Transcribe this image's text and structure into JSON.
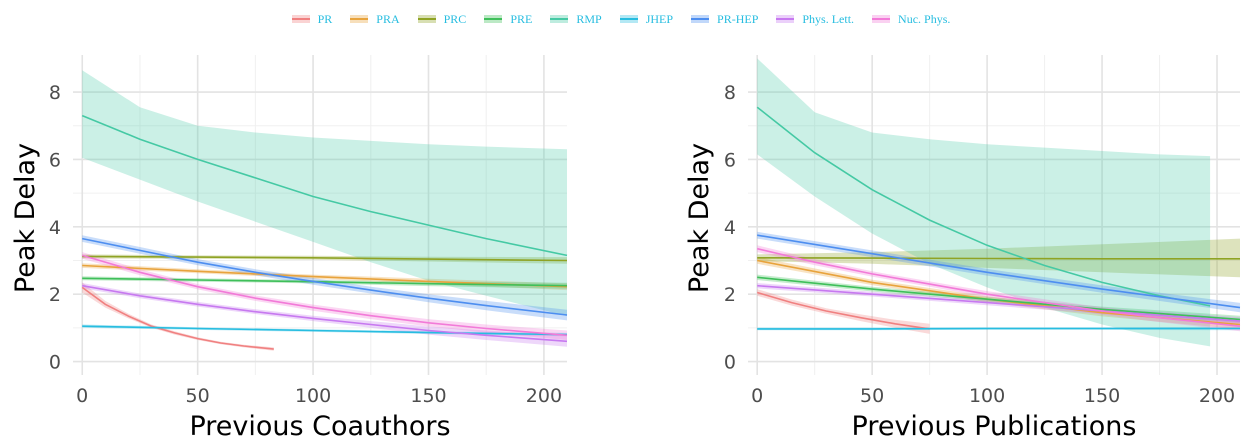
{
  "legend": {
    "items": [
      {
        "name": "PR",
        "color": "#f08080"
      },
      {
        "name": "PRA",
        "color": "#e8a33c"
      },
      {
        "name": "PRC",
        "color": "#8fa324"
      },
      {
        "name": "PRE",
        "color": "#3fbf5a"
      },
      {
        "name": "RMP",
        "color": "#45c9a4"
      },
      {
        "name": "JHEP",
        "color": "#27bde0"
      },
      {
        "name": "PR-HEP",
        "color": "#4d8ef0"
      },
      {
        "name": "Phys. Lett.",
        "color": "#c779f0"
      },
      {
        "name": "Nuc. Phys.",
        "color": "#f27ad8"
      }
    ]
  },
  "chart_data": [
    {
      "type": "line",
      "xlabel": "Previous Coauthors",
      "ylabel": "Peak Delay",
      "xlim": [
        -4,
        210
      ],
      "ylim": [
        -0.4,
        9.1
      ],
      "xticks": [
        0,
        50,
        100,
        150,
        200
      ],
      "yticks": [
        0,
        2,
        4,
        6,
        8
      ],
      "grid": true,
      "series": [
        {
          "name": "PR",
          "color": "#f08080",
          "x": [
            0,
            10,
            20,
            30,
            40,
            50,
            60,
            70,
            83
          ],
          "y": [
            2.2,
            1.7,
            1.35,
            1.05,
            0.85,
            0.68,
            0.55,
            0.46,
            0.37
          ],
          "lower": [
            2.05,
            1.6,
            1.28,
            1.0,
            0.8,
            0.64,
            0.51,
            0.42,
            0.32
          ],
          "upper": [
            2.35,
            1.8,
            1.42,
            1.1,
            0.9,
            0.72,
            0.59,
            0.5,
            0.42
          ]
        },
        {
          "name": "PRA",
          "color": "#e8a33c",
          "x": [
            0,
            50,
            100,
            150,
            210
          ],
          "y": [
            2.85,
            2.68,
            2.52,
            2.38,
            2.22
          ],
          "lower": [
            2.78,
            2.62,
            2.46,
            2.3,
            2.12
          ],
          "upper": [
            2.92,
            2.74,
            2.58,
            2.46,
            2.32
          ]
        },
        {
          "name": "PRC",
          "color": "#8fa324",
          "x": [
            0,
            50,
            100,
            150,
            210
          ],
          "y": [
            3.12,
            3.1,
            3.08,
            3.04,
            3.0
          ],
          "lower": [
            3.06,
            3.05,
            3.02,
            2.97,
            2.9
          ],
          "upper": [
            3.18,
            3.15,
            3.14,
            3.11,
            3.1
          ]
        },
        {
          "name": "PRE",
          "color": "#3fbf5a",
          "x": [
            0,
            50,
            100,
            150,
            210
          ],
          "y": [
            2.47,
            2.42,
            2.37,
            2.31,
            2.25
          ],
          "lower": [
            2.41,
            2.37,
            2.32,
            2.24,
            2.16
          ],
          "upper": [
            2.53,
            2.47,
            2.42,
            2.38,
            2.34
          ]
        },
        {
          "name": "RMP",
          "color": "#45c9a4",
          "x": [
            0,
            25,
            50,
            75,
            100,
            125,
            150,
            175,
            210
          ],
          "y": [
            7.3,
            6.6,
            6.0,
            5.45,
            4.9,
            4.45,
            4.05,
            3.65,
            3.15
          ],
          "lower": [
            6.05,
            5.4,
            4.75,
            4.15,
            3.55,
            2.95,
            2.4,
            1.95,
            1.35
          ],
          "upper": [
            8.65,
            7.55,
            7.0,
            6.8,
            6.65,
            6.55,
            6.45,
            6.38,
            6.3
          ]
        },
        {
          "name": "JHEP",
          "color": "#27bde0",
          "x": [
            0,
            50,
            100,
            150,
            210
          ],
          "y": [
            1.05,
            0.98,
            0.92,
            0.86,
            0.8
          ],
          "lower": [
            1.0,
            0.94,
            0.88,
            0.82,
            0.75
          ],
          "upper": [
            1.1,
            1.02,
            0.96,
            0.9,
            0.85
          ]
        },
        {
          "name": "PR-HEP",
          "color": "#4d8ef0",
          "x": [
            0,
            25,
            50,
            75,
            100,
            125,
            150,
            175,
            210
          ],
          "y": [
            3.65,
            3.3,
            2.95,
            2.65,
            2.38,
            2.12,
            1.88,
            1.66,
            1.38
          ],
          "lower": [
            3.55,
            3.2,
            2.86,
            2.56,
            2.28,
            2.02,
            1.76,
            1.52,
            1.22
          ],
          "upper": [
            3.75,
            3.4,
            3.04,
            2.74,
            2.48,
            2.22,
            2.0,
            1.8,
            1.54
          ]
        },
        {
          "name": "Phys. Lett.",
          "color": "#c779f0",
          "x": [
            0,
            25,
            50,
            75,
            100,
            125,
            150,
            175,
            210
          ],
          "y": [
            2.25,
            1.95,
            1.7,
            1.48,
            1.28,
            1.1,
            0.92,
            0.78,
            0.6
          ],
          "lower": [
            2.17,
            1.88,
            1.63,
            1.41,
            1.2,
            1.0,
            0.8,
            0.64,
            0.44
          ],
          "upper": [
            2.33,
            2.02,
            1.77,
            1.55,
            1.36,
            1.2,
            1.04,
            0.92,
            0.76
          ]
        },
        {
          "name": "Nuc. Phys.",
          "color": "#f27ad8",
          "x": [
            0,
            25,
            50,
            75,
            100,
            125,
            150,
            175,
            210
          ],
          "y": [
            3.15,
            2.65,
            2.22,
            1.88,
            1.6,
            1.36,
            1.15,
            0.98,
            0.78
          ],
          "lower": [
            3.05,
            2.56,
            2.14,
            1.8,
            1.51,
            1.26,
            1.04,
            0.86,
            0.64
          ],
          "upper": [
            3.25,
            2.74,
            2.3,
            1.96,
            1.69,
            1.46,
            1.26,
            1.1,
            0.92
          ]
        }
      ]
    },
    {
      "type": "line",
      "xlabel": "Previous Publications",
      "ylabel": "Peak Delay",
      "xlim": [
        -4,
        210
      ],
      "ylim": [
        -0.4,
        9.1
      ],
      "xticks": [
        0,
        50,
        100,
        150,
        200
      ],
      "yticks": [
        0,
        2,
        4,
        6,
        8
      ],
      "grid": true,
      "series": [
        {
          "name": "PR",
          "color": "#f08080",
          "x": [
            0,
            15,
            30,
            45,
            60,
            75
          ],
          "y": [
            2.05,
            1.75,
            1.5,
            1.3,
            1.12,
            0.97
          ],
          "lower": [
            1.95,
            1.66,
            1.42,
            1.2,
            1.0,
            0.82
          ],
          "upper": [
            2.15,
            1.84,
            1.58,
            1.4,
            1.24,
            1.12
          ]
        },
        {
          "name": "PRA",
          "color": "#e8a33c",
          "x": [
            0,
            50,
            100,
            150,
            210
          ],
          "y": [
            3.0,
            2.35,
            1.85,
            1.45,
            1.1
          ],
          "lower": [
            2.9,
            2.27,
            1.76,
            1.34,
            0.96
          ],
          "upper": [
            3.1,
            2.43,
            1.94,
            1.56,
            1.24
          ]
        },
        {
          "name": "PRC",
          "color": "#8fa324",
          "x": [
            0,
            50,
            100,
            150,
            210
          ],
          "y": [
            3.08,
            3.07,
            3.06,
            3.05,
            3.05
          ],
          "lower": [
            2.98,
            2.9,
            2.78,
            2.65,
            2.5
          ],
          "upper": [
            3.18,
            3.25,
            3.35,
            3.48,
            3.65
          ]
        },
        {
          "name": "PRE",
          "color": "#3fbf5a",
          "x": [
            0,
            50,
            100,
            150,
            210
          ],
          "y": [
            2.5,
            2.15,
            1.85,
            1.55,
            1.25
          ],
          "lower": [
            2.42,
            2.08,
            1.78,
            1.47,
            1.14
          ],
          "upper": [
            2.58,
            2.22,
            1.92,
            1.63,
            1.36
          ]
        },
        {
          "name": "RMP",
          "color": "#45c9a4",
          "x": [
            0,
            25,
            50,
            75,
            100,
            125,
            150,
            175,
            197
          ],
          "y": [
            7.55,
            6.2,
            5.1,
            4.2,
            3.45,
            2.85,
            2.35,
            1.95,
            1.65
          ],
          "lower": [
            6.15,
            4.9,
            3.8,
            2.9,
            2.2,
            1.6,
            1.1,
            0.7,
            0.45
          ],
          "upper": [
            9.0,
            7.4,
            6.8,
            6.6,
            6.45,
            6.35,
            6.25,
            6.15,
            6.1
          ]
        },
        {
          "name": "JHEP",
          "color": "#27bde0",
          "x": [
            0,
            50,
            100,
            150,
            210
          ],
          "y": [
            0.97,
            0.97,
            0.98,
            0.98,
            0.98
          ],
          "lower": [
            0.93,
            0.93,
            0.94,
            0.94,
            0.93
          ],
          "upper": [
            1.01,
            1.01,
            1.02,
            1.02,
            1.03
          ]
        },
        {
          "name": "PR-HEP",
          "color": "#4d8ef0",
          "x": [
            0,
            50,
            100,
            150,
            210
          ],
          "y": [
            3.75,
            3.2,
            2.65,
            2.15,
            1.6
          ],
          "lower": [
            3.65,
            3.1,
            2.55,
            2.04,
            1.46
          ],
          "upper": [
            3.85,
            3.3,
            2.75,
            2.26,
            1.74
          ]
        },
        {
          "name": "Phys. Lett.",
          "color": "#c779f0",
          "x": [
            0,
            50,
            100,
            150,
            210
          ],
          "y": [
            2.25,
            2.0,
            1.75,
            1.5,
            1.2
          ],
          "lower": [
            2.17,
            1.93,
            1.67,
            1.41,
            1.08
          ],
          "upper": [
            2.33,
            2.07,
            1.83,
            1.59,
            1.32
          ]
        },
        {
          "name": "Nuc. Phys.",
          "color": "#f27ad8",
          "x": [
            0,
            25,
            50,
            75,
            100,
            125,
            150,
            175,
            210
          ],
          "y": [
            3.35,
            2.95,
            2.6,
            2.3,
            2.0,
            1.75,
            1.5,
            1.3,
            1.05
          ],
          "lower": [
            3.25,
            2.86,
            2.52,
            2.22,
            1.91,
            1.65,
            1.39,
            1.17,
            0.9
          ],
          "upper": [
            3.45,
            3.04,
            2.68,
            2.38,
            2.09,
            1.85,
            1.61,
            1.43,
            1.2
          ]
        }
      ]
    }
  ]
}
